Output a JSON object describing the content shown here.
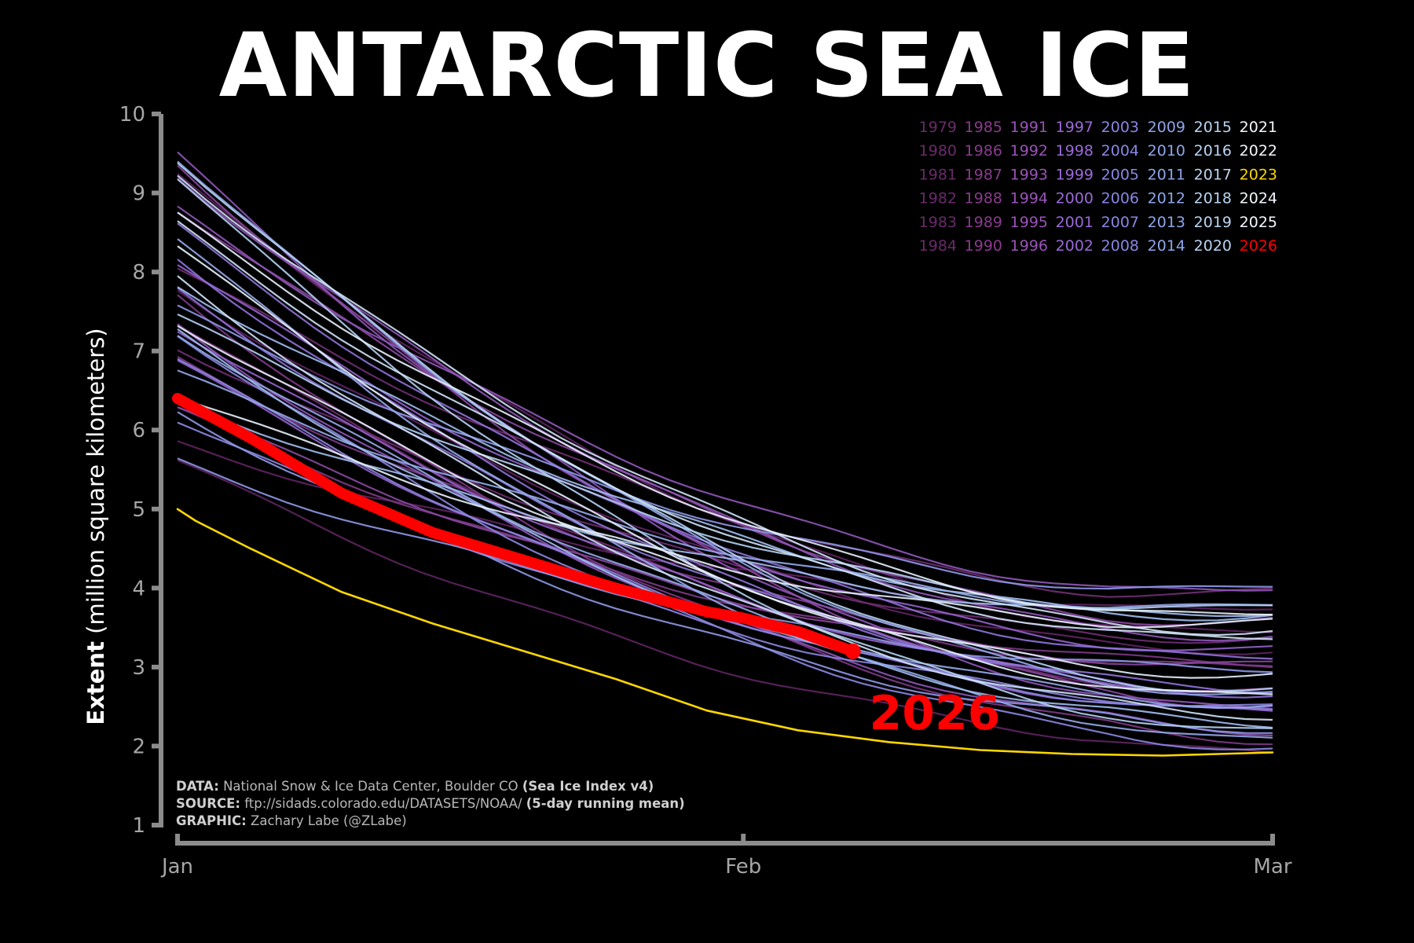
{
  "title": "ANTARCTIC SEA ICE",
  "y_axis_label_bold": "Extent",
  "y_axis_label_rest": "(million square kilometers)",
  "credits": [
    {
      "label": "DATA:",
      "text": "National Snow & Ice Data Center, Boulder CO",
      "bold": "(Sea Ice Index v4)"
    },
    {
      "label": "SOURCE:",
      "text": "ftp://sidads.colorado.edu/DATASETS/NOAA/",
      "bold": "(5-day running mean)"
    },
    {
      "label": "GRAPHIC:",
      "text": "Zachary Labe (@ZLabe)",
      "bold": ""
    }
  ],
  "highlight_label": "2026",
  "colors": {
    "background": "#000000",
    "highlight_year": "#ff0000",
    "record_year": "#ffd700",
    "early_years": "#6b2a6b",
    "mid_years": "#9b5fd6",
    "late_years": "#9ec3ec"
  },
  "chart_data": {
    "type": "line",
    "title": "ANTARCTIC SEA ICE",
    "xlabel": "",
    "ylabel": "Extent (million square kilometers)",
    "x_ticks": [
      "Jan",
      "Feb",
      "Mar"
    ],
    "y_ticks": [
      "1",
      "2",
      "3",
      "4",
      "5",
      "6",
      "7",
      "8",
      "9",
      "10"
    ],
    "ylim": [
      1,
      10
    ],
    "x_range_days": [
      1,
      61
    ],
    "grid": false,
    "legend_position": "top-right",
    "legend_years": [
      [
        "1979",
        "1985",
        "1991",
        "1997",
        "2003",
        "2009",
        "2015",
        "2021"
      ],
      [
        "1980",
        "1986",
        "1992",
        "1998",
        "2004",
        "2010",
        "2016",
        "2022"
      ],
      [
        "1981",
        "1987",
        "1993",
        "1999",
        "2005",
        "2011",
        "2017",
        "2023"
      ],
      [
        "1982",
        "1988",
        "1994",
        "2000",
        "2006",
        "2012",
        "2018",
        "2024"
      ],
      [
        "1983",
        "1989",
        "1995",
        "2001",
        "2007",
        "2013",
        "2019",
        "2025"
      ],
      [
        "1984",
        "1990",
        "1996",
        "2002",
        "2008",
        "2014",
        "2020",
        "2026"
      ]
    ],
    "series": [
      {
        "name": "2026",
        "x": [
          1,
          5,
          10,
          15,
          20,
          25,
          30,
          32,
          35,
          38
        ],
        "values": [
          6.4,
          5.9,
          5.2,
          4.7,
          4.35,
          4.0,
          3.7,
          3.62,
          3.45,
          3.2
        ]
      },
      {
        "name": "2023",
        "x": [
          1,
          2,
          5,
          10,
          15,
          20,
          25,
          30,
          35,
          40,
          45,
          50,
          55,
          61
        ],
        "values": [
          5.0,
          4.85,
          4.5,
          3.95,
          3.55,
          3.2,
          2.85,
          2.45,
          2.2,
          2.05,
          1.95,
          1.9,
          1.88,
          1.92
        ]
      }
    ]
  }
}
